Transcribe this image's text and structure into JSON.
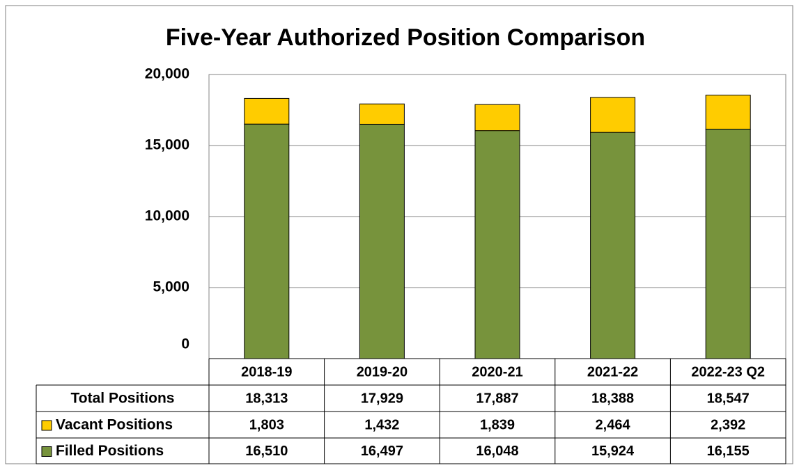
{
  "chart_data": {
    "type": "stacked_bar",
    "title": "Five-Year Authorized Position Comparison",
    "categories": [
      "2018-19",
      "2019-20",
      "2020-21",
      "2021-22",
      "2022-23 Q2"
    ],
    "series": [
      {
        "name": "Vacant Positions",
        "color": "#ffcc00",
        "values": [
          1803,
          1432,
          1839,
          2464,
          2392
        ],
        "value_labels": [
          "1,803",
          "1,432",
          "1,839",
          "2,464",
          "2,392"
        ]
      },
      {
        "name": "Filled Positions",
        "color": "#77933c",
        "values": [
          16510,
          16497,
          16048,
          15924,
          16155
        ],
        "value_labels": [
          "16,510",
          "16,497",
          "16,048",
          "15,924",
          "16,155"
        ]
      }
    ],
    "totals": {
      "name": "Total Positions",
      "values": [
        18313,
        17929,
        17887,
        18388,
        18547
      ],
      "value_labels": [
        "18,313",
        "17,929",
        "17,887",
        "18,388",
        "18,547"
      ]
    },
    "ylim": [
      0,
      20000
    ],
    "yticks": [
      0,
      {
        "value": 5000,
        "label": "5,000"
      },
      {
        "value": 10000,
        "label": "10,000"
      },
      {
        "value": 15000,
        "label": "15,000"
      },
      {
        "value": 20000,
        "label": "20,000"
      }
    ],
    "grid": true
  }
}
